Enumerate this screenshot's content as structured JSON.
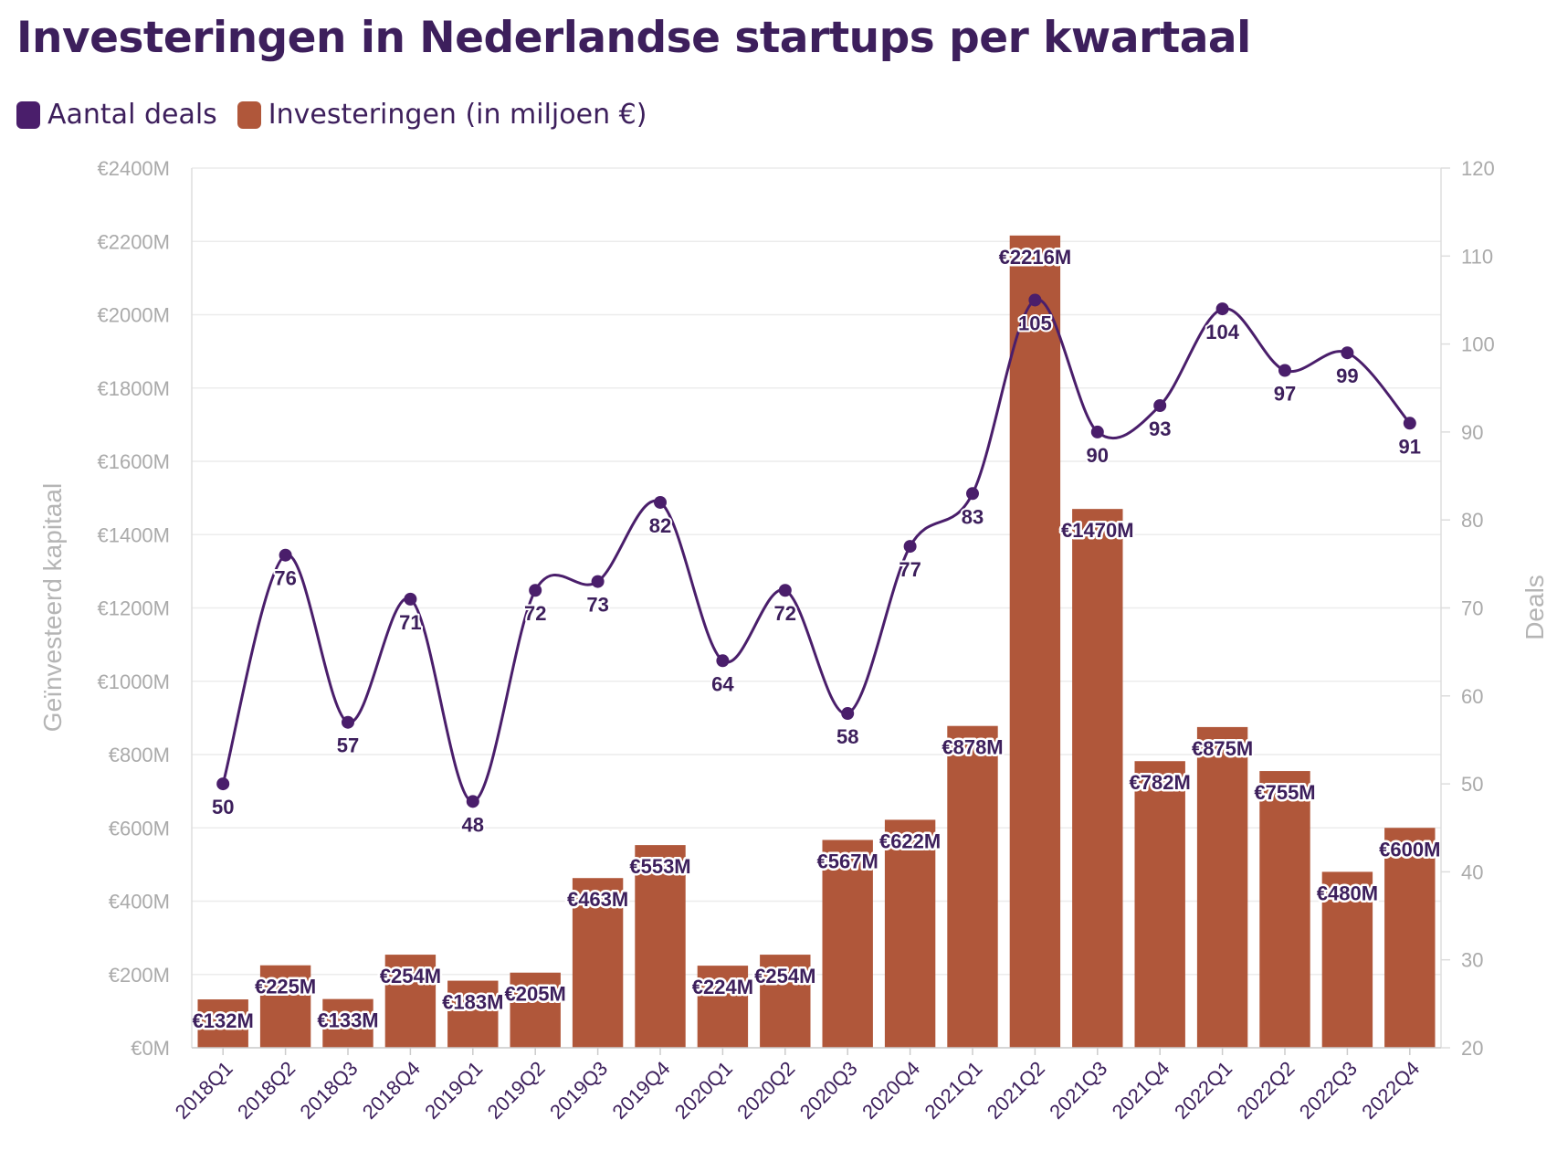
{
  "title": "Investeringen in Nederlandse startups per kwartaal",
  "legend": [
    {
      "label": "Aantal deals",
      "color": "#4a1e6b"
    },
    {
      "label": "Investeringen (in miljoen €)",
      "color": "#b0573a"
    }
  ],
  "chart_data": {
    "type": "bar",
    "title": "Investeringen in Nederlandse startups per kwartaal",
    "categories": [
      "2018Q1",
      "2018Q2",
      "2018Q3",
      "2018Q4",
      "2019Q1",
      "2019Q2",
      "2019Q3",
      "2019Q4",
      "2020Q1",
      "2020Q2",
      "2020Q3",
      "2020Q4",
      "2021Q1",
      "2021Q2",
      "2021Q3",
      "2021Q4",
      "2022Q1",
      "2022Q2",
      "2022Q3",
      "2022Q4"
    ],
    "series": [
      {
        "name": "Investeringen (in miljoen €)",
        "type": "bar",
        "axis": "left",
        "color": "#b0573a",
        "values": [
          132,
          225,
          133,
          254,
          183,
          205,
          463,
          553,
          224,
          254,
          567,
          622,
          878,
          2216,
          1470,
          782,
          875,
          755,
          480,
          600
        ],
        "labels": [
          "€132M",
          "€225M",
          "€133M",
          "€254M",
          "€183M",
          "€205M",
          "€463M",
          "€553M",
          "€224M",
          "€254M",
          "€567M",
          "€622M",
          "€878M",
          "€2216M",
          "€1470M",
          "€782M",
          "€875M",
          "€755M",
          "€480M",
          "€600M"
        ]
      },
      {
        "name": "Aantal deals",
        "type": "line",
        "axis": "right",
        "color": "#4a1e6b",
        "values": [
          50,
          76,
          57,
          71,
          48,
          72,
          73,
          82,
          64,
          72,
          58,
          77,
          83,
          105,
          90,
          93,
          104,
          97,
          99,
          91
        ]
      }
    ],
    "ylabel": "Geïnvesteerd kapitaal",
    "y2label": "Deals",
    "ylim": [
      0,
      2400
    ],
    "y2lim": [
      20,
      120
    ],
    "yticks": [
      "€0M",
      "€200M",
      "€400M",
      "€600M",
      "€800M",
      "€1000M",
      "€1200M",
      "€1400M",
      "€1600M",
      "€1800M",
      "€2000M",
      "€2200M",
      "€2400M"
    ],
    "y2ticks": [
      "20",
      "30",
      "40",
      "50",
      "60",
      "70",
      "80",
      "90",
      "100",
      "110",
      "120"
    ],
    "grid": true,
    "legend_position": "top-left"
  }
}
